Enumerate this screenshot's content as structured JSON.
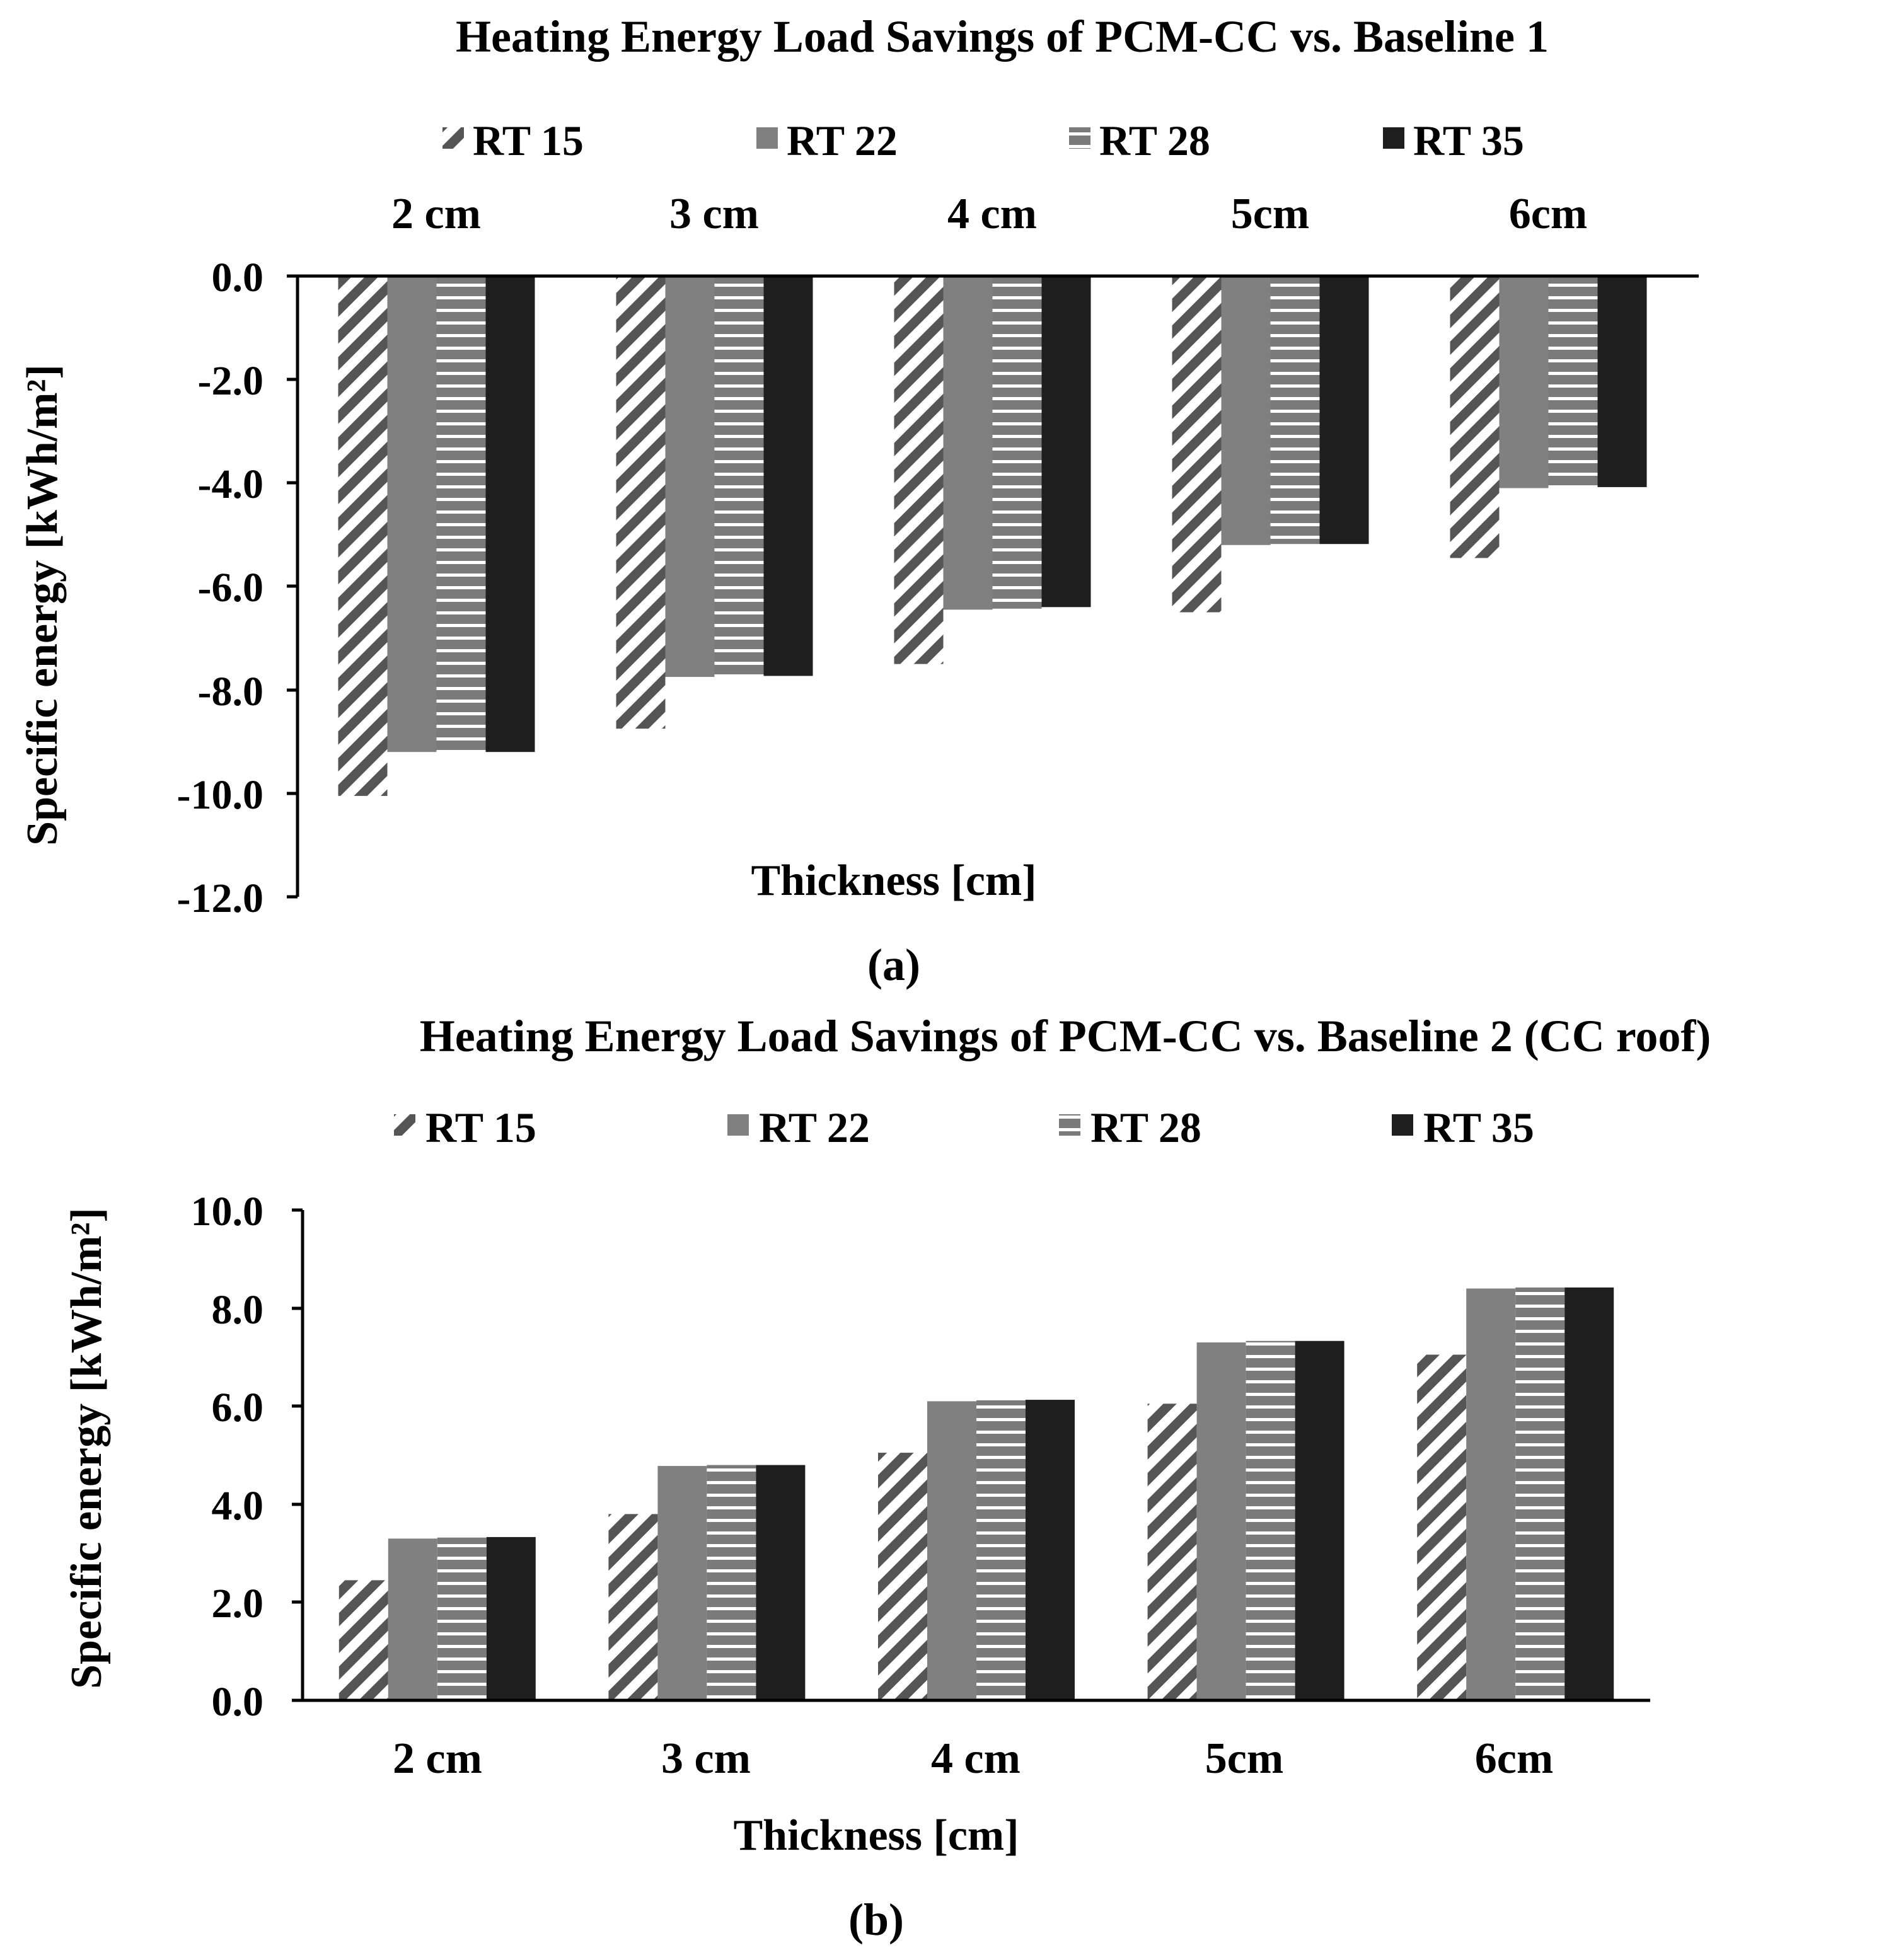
{
  "colors": {
    "axis": "#000000",
    "rt15_stripe": "#555555",
    "rt22": "#808080",
    "rt28_bg": "#7a7a7a",
    "rt28_stripe": "#ffffff",
    "rt35": "#1e1e1e"
  },
  "chart_data": [
    {
      "type": "bar",
      "panel_label": "(a)",
      "title": "Heating Energy Load Savings of PCM-CC vs. Baseline 1",
      "xlabel": "Thickness [cm]",
      "ylabel": "Specific energy [kWh/m²]",
      "ylim": [
        -12.0,
        0.0
      ],
      "ytick_values": [
        0,
        -2,
        -4,
        -6,
        -8,
        -10,
        -12
      ],
      "ytick_labels": [
        "0.0",
        "-2.0",
        "-4.0",
        "-6.0",
        "-8.0",
        "-10.0",
        "-12.0"
      ],
      "categories": [
        "2 cm",
        "3 cm",
        "4 cm",
        "5cm",
        "6cm"
      ],
      "category_label_position": "top",
      "legend_position": "top",
      "grid": false,
      "series": [
        {
          "name": "RT 15",
          "pattern": "diagonal-hatch",
          "values": [
            -10.05,
            -8.75,
            -7.5,
            -6.5,
            -5.45
          ]
        },
        {
          "name": "RT 22",
          "pattern": "solid-gray",
          "values": [
            -9.2,
            -7.75,
            -6.45,
            -5.2,
            -4.1
          ]
        },
        {
          "name": "RT 28",
          "pattern": "horizontal-hatch",
          "values": [
            -9.2,
            -7.75,
            -6.43,
            -5.18,
            -4.08
          ]
        },
        {
          "name": "RT 35",
          "pattern": "solid-black",
          "values": [
            -9.2,
            -7.73,
            -6.4,
            -5.18,
            -4.08
          ]
        }
      ]
    },
    {
      "type": "bar",
      "panel_label": "(b)",
      "title": "Heating Energy Load Savings of PCM-CC vs. Baseline 2 (CC roof)",
      "xlabel": "Thickness [cm]",
      "ylabel": "Specific energy [kWh/m²]",
      "ylim": [
        0.0,
        10.0
      ],
      "ytick_values": [
        0,
        2,
        4,
        6,
        8,
        10
      ],
      "ytick_labels": [
        "0.0",
        "2.0",
        "4.0",
        "6.0",
        "8.0",
        "10.0"
      ],
      "categories": [
        "2 cm",
        "3 cm",
        "4 cm",
        "5cm",
        "6cm"
      ],
      "category_label_position": "bottom",
      "legend_position": "top",
      "grid": false,
      "series": [
        {
          "name": "RT 15",
          "pattern": "diagonal-hatch",
          "values": [
            2.45,
            3.8,
            5.05,
            6.05,
            7.05
          ]
        },
        {
          "name": "RT 22",
          "pattern": "solid-gray",
          "values": [
            3.3,
            4.78,
            6.1,
            7.3,
            8.4
          ]
        },
        {
          "name": "RT 28",
          "pattern": "horizontal-hatch",
          "values": [
            3.32,
            4.8,
            6.12,
            7.33,
            8.42
          ]
        },
        {
          "name": "RT 35",
          "pattern": "solid-black",
          "values": [
            3.33,
            4.8,
            6.13,
            7.33,
            8.42
          ]
        }
      ]
    }
  ]
}
